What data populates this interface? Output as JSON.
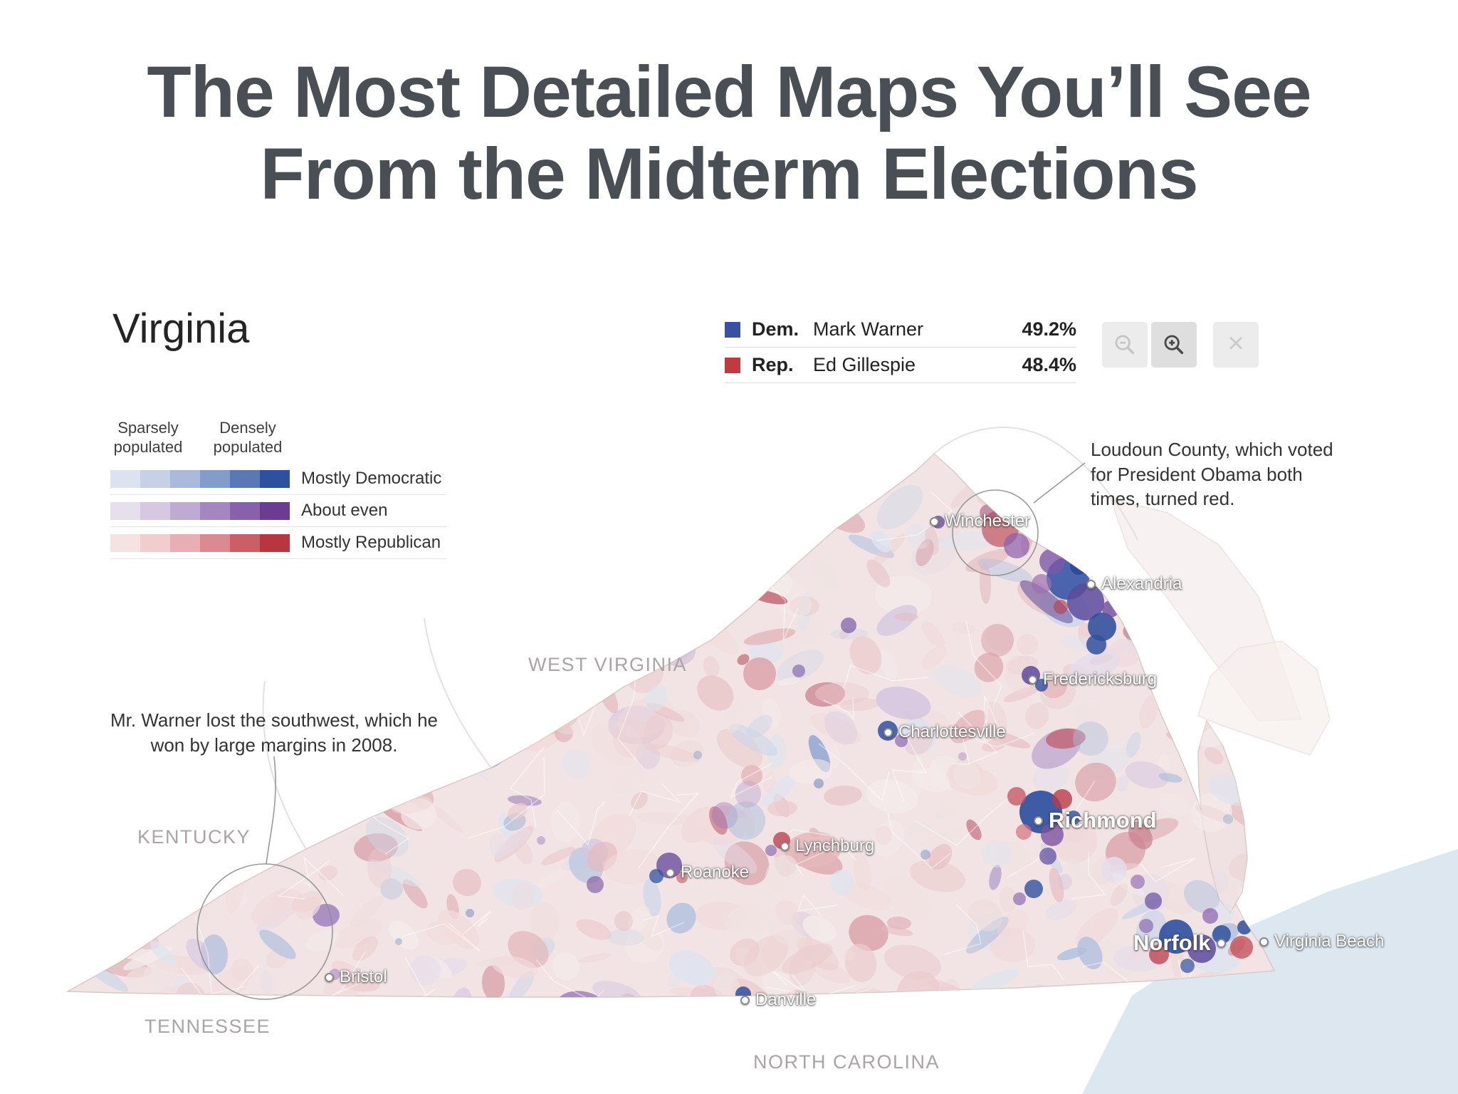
{
  "page": {
    "title_line1": "The Most Detailed Maps You’ll See",
    "title_line2": "From the Midterm Elections"
  },
  "map_panel": {
    "region_title": "Virginia"
  },
  "legend": {
    "sparse_label": "Sparsely populated",
    "dense_label": "Densely populated",
    "rows": [
      {
        "label": "Mostly Democratic",
        "colors": [
          "#dce3ef",
          "#c6d1e6",
          "#a9bada",
          "#839cc9",
          "#5a78b5",
          "#2e519f"
        ]
      },
      {
        "label": "About even",
        "colors": [
          "#e6e0ed",
          "#d5c8e0",
          "#bfaad2",
          "#a487c0",
          "#8761aa",
          "#6a3d93"
        ]
      },
      {
        "label": "Mostly Republican",
        "colors": [
          "#f7e2e3",
          "#f1cdd0",
          "#e7afb3",
          "#da8a90",
          "#ca5f68",
          "#b93540"
        ]
      }
    ]
  },
  "results": {
    "rows": [
      {
        "party": "Dem.",
        "candidate": "Mark Warner",
        "percent": "49.2%",
        "color": "#3a50a0"
      },
      {
        "party": "Rep.",
        "candidate": "Ed Gillespie",
        "percent": "48.4%",
        "color": "#bf3a41"
      }
    ]
  },
  "controls": {
    "zoom_out_icon": "magnifier-minus",
    "zoom_in_icon": "magnifier-plus",
    "close_glyph": "×"
  },
  "annotations": {
    "loudoun": "Loudoun County, which voted for President Obama both times, turned red.",
    "southwest": "Mr. Warner lost the southwest, which he won by large margins in 2008."
  },
  "map": {
    "neighbor_states": [
      "WEST VIRGINIA",
      "KENTUCKY",
      "TENNESSEE",
      "NORTH CAROLINA"
    ],
    "cities": [
      "Winchester",
      "Alexandria",
      "Fredericksburg",
      "Charlottesville",
      "Richmond",
      "Lynchburg",
      "Roanoke",
      "Norfolk",
      "Virginia Beach",
      "Bristol",
      "Danville"
    ]
  }
}
